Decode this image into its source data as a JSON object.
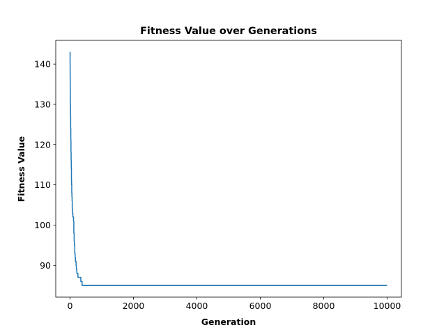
{
  "chart_data": {
    "type": "line",
    "title": "Fitness Value over Generations",
    "xlabel": "Generation",
    "ylabel": "Fitness Value",
    "xlim": [
      -450,
      10450
    ],
    "ylim": [
      82.1,
      145.9
    ],
    "xticks": [
      0,
      2000,
      4000,
      6000,
      8000,
      10000
    ],
    "yticks": [
      90,
      100,
      110,
      120,
      130,
      140
    ],
    "grid": false,
    "legend": "none",
    "series": [
      {
        "color": "#1f77b4",
        "step": true,
        "x": [
          0,
          2,
          4,
          6,
          8,
          10,
          15,
          20,
          25,
          30,
          35,
          40,
          45,
          50,
          55,
          60,
          65,
          70,
          80,
          90,
          100,
          110,
          120,
          130,
          140,
          150,
          160,
          170,
          180,
          190,
          200,
          215,
          230,
          250,
          270,
          290,
          310,
          340,
          370,
          380,
          400,
          10000
        ],
        "y": [
          143,
          140,
          137,
          134,
          132,
          130,
          127,
          124,
          121,
          118,
          116,
          114,
          111,
          110,
          108,
          107,
          106,
          104,
          103,
          102,
          102,
          101,
          98,
          96,
          95,
          93,
          92,
          91,
          91,
          90,
          89,
          88,
          88,
          87,
          87,
          87,
          87,
          86,
          86,
          85,
          85,
          85
        ]
      }
    ]
  }
}
